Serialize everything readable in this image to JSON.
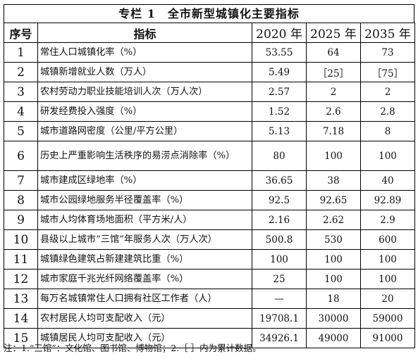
{
  "title": "专栏 1　全市新型城镇化主要指标",
  "headers": {
    "no": "序号",
    "name": "指标",
    "y2020": "2020 年",
    "y2025": "2025 年",
    "y2035": "2035 年"
  },
  "rows": [
    {
      "no": "1",
      "name": "常住人口城镇化率（%）",
      "v2020": "53.55",
      "v2025": "64",
      "v2035": "73"
    },
    {
      "no": "2",
      "name": "城镇新增就业人数（万人）",
      "v2020": "5.49",
      "v2025": "［25］",
      "v2035": "［75］"
    },
    {
      "no": "3",
      "name": "农村劳动力职业技能培训人次（万人次）",
      "v2020": "2.57",
      "v2025": "2",
      "v2035": "2"
    },
    {
      "no": "4",
      "name": "研发经费投入强度（%）",
      "v2020": "1.52",
      "v2025": "2.6",
      "v2035": "2.8"
    },
    {
      "no": "5",
      "name": "城市道路网密度（公里/平方公里）",
      "v2020": "5.13",
      "v2025": "7.18",
      "v2035": "8"
    },
    {
      "no": "6",
      "name": "历史上严重影响生活秩序的易涝点消除率（%）",
      "v2020": "80",
      "v2025": "100",
      "v2035": "100"
    },
    {
      "no": "7",
      "name": "城市建成区绿地率（%）",
      "v2020": "36.65",
      "v2025": "38",
      "v2035": "40"
    },
    {
      "no": "8",
      "name": "城市公园绿地服务半径覆盖率（%）",
      "v2020": "92.5",
      "v2025": "92.65",
      "v2035": "92.89"
    },
    {
      "no": "9",
      "name": "城市人均体育场地面积（平方米/人）",
      "v2020": "2.16",
      "v2025": "2.62",
      "v2035": "2.9"
    },
    {
      "no": "10",
      "name": "县级以上城市“三馆”年服务人次（万人次）",
      "v2020": "500.8",
      "v2025": "530",
      "v2035": "600"
    },
    {
      "no": "11",
      "name": "城镇绿色建筑占新建建筑比重（%）",
      "v2020": "100",
      "v2025": "100",
      "v2035": "100"
    },
    {
      "no": "12",
      "name": "城市家庭千兆光纤网络覆盖率（%）",
      "v2020": "25",
      "v2025": "100",
      "v2035": "100"
    },
    {
      "no": "13",
      "name": "每万名城镇常住人口拥有社区工作者（人）",
      "v2020": "—",
      "v2025": "18",
      "v2035": "20"
    },
    {
      "no": "14",
      "name": "农村居民人均可支配收入（元）",
      "v2020": "19708.1",
      "v2025": "30000",
      "v2035": "59000"
    },
    {
      "no": "15",
      "name": "城镇居民人均可支配收入（元）",
      "v2020": "34926.1",
      "v2025": "49000",
      "v2035": "91000"
    }
  ],
  "note": "注：1.“三馆”：文化馆、图书馆、博物馆；2.［ ］内为累计数据。"
}
